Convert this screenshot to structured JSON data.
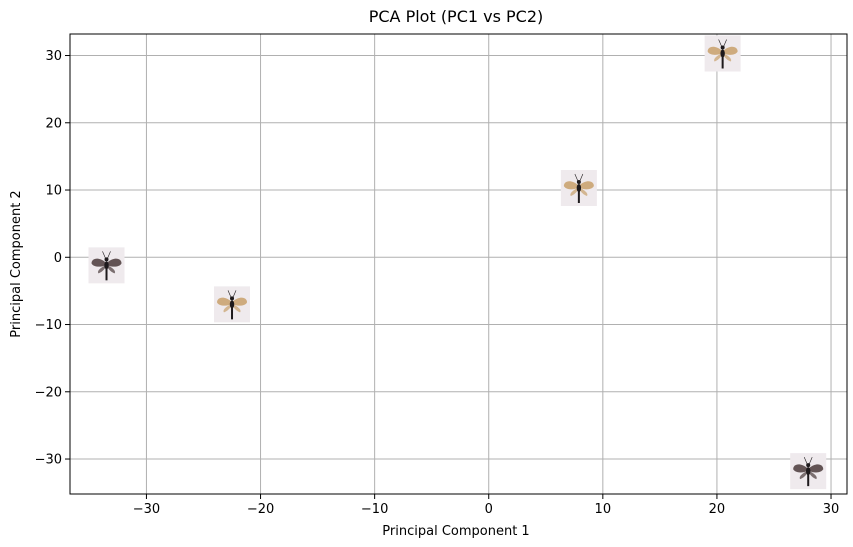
{
  "chart_data": {
    "type": "scatter",
    "title": "PCA Plot (PC1 vs PC2)",
    "xlabel": "Principal Component 1",
    "ylabel": "Principal Component 2",
    "xlim": [
      -36.7,
      31.4
    ],
    "ylim": [
      -35.2,
      33.2
    ],
    "xticks": [
      -30,
      -20,
      -10,
      0,
      10,
      20,
      30
    ],
    "yticks": [
      -30,
      -20,
      -10,
      0,
      10,
      20,
      30
    ],
    "grid": true,
    "marker": "insect-thumbnail-image",
    "points": [
      {
        "x": -33.5,
        "y": -1.2
      },
      {
        "x": -22.5,
        "y": -7.0
      },
      {
        "x": 7.9,
        "y": 10.3
      },
      {
        "x": 20.5,
        "y": 30.3
      },
      {
        "x": 28.0,
        "y": -31.8
      }
    ],
    "colors": {
      "thumb_bg": "#efeaed",
      "grid": "#b0b0b0"
    }
  }
}
